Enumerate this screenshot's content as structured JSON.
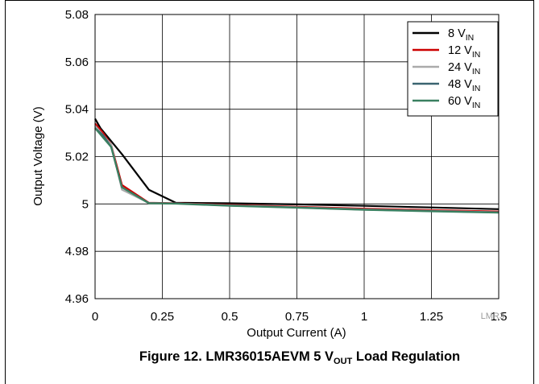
{
  "chart_data": {
    "type": "line",
    "xlabel": "Output Current (A)",
    "ylabel": "Output Voltage (V)",
    "xlim": [
      0,
      1.5
    ],
    "ylim": [
      4.96,
      5.08
    ],
    "xticks": [
      0,
      0.25,
      0.5,
      0.75,
      1,
      1.25,
      1.5
    ],
    "yticks": [
      4.96,
      4.98,
      5,
      5.02,
      5.04,
      5.06,
      5.08
    ],
    "xtick_labels": [
      "0",
      "0.25",
      "0.5",
      "0.75",
      "1",
      "1.25",
      "1.5"
    ],
    "ytick_labels": [
      "4.96",
      "4.98",
      "5",
      "5.02",
      "5.04",
      "5.06",
      "5.08"
    ],
    "grid": true,
    "legend_position": "top-right",
    "series": [
      {
        "name": "8",
        "sub": "IN",
        "color": "#000000",
        "x": [
          0,
          0.02,
          0.1,
          0.2,
          0.3,
          0.5,
          0.75,
          1,
          1.25,
          1.5
        ],
        "y": [
          5.036,
          5.032,
          5.021,
          5.006,
          5.0005,
          5.0003,
          4.9998,
          4.9992,
          4.9985,
          4.9978
        ]
      },
      {
        "name": "12",
        "sub": "IN",
        "color": "#cc0000",
        "x": [
          0,
          0.03,
          0.06,
          0.1,
          0.2,
          0.3,
          0.5,
          0.75,
          1,
          1.25,
          1.5
        ],
        "y": [
          5.034,
          5.03,
          5.025,
          5.008,
          5.0005,
          5.0003,
          4.9996,
          4.9988,
          4.998,
          4.9974,
          4.9968
        ]
      },
      {
        "name": "24",
        "sub": "IN",
        "color": "#aaaaaa",
        "x": [
          0,
          0.03,
          0.06,
          0.1,
          0.2,
          0.3,
          0.5,
          0.75,
          1,
          1.25,
          1.5
        ],
        "y": [
          5.033,
          5.029,
          5.025,
          5.006,
          5.0004,
          5.0002,
          4.9994,
          4.9986,
          4.9977,
          4.9971,
          4.9965
        ]
      },
      {
        "name": "48",
        "sub": "IN",
        "color": "#3a6470",
        "x": [
          0,
          0.03,
          0.06,
          0.1,
          0.2,
          0.3,
          0.5,
          0.75,
          1,
          1.25,
          1.5
        ],
        "y": [
          5.032,
          5.029,
          5.024,
          5.007,
          5.0004,
          5.0002,
          4.9993,
          4.9985,
          4.9976,
          4.997,
          4.9964
        ]
      },
      {
        "name": "60",
        "sub": "IN",
        "color": "#3a8060",
        "x": [
          0,
          0.03,
          0.06,
          0.1,
          0.2,
          0.3,
          0.5,
          0.75,
          1,
          1.25,
          1.5
        ],
        "y": [
          5.032,
          5.028,
          5.024,
          5.007,
          5.0003,
          5.0001,
          4.9992,
          4.9984,
          4.9975,
          4.9969,
          4.9963
        ]
      }
    ]
  },
  "legend_unit": " V",
  "caption": {
    "prefix": "Figure 12. LMR36015AEVM 5 V",
    "sub": "OUT",
    "suffix": " Load Regulation"
  },
  "reference_code": "LMR3"
}
